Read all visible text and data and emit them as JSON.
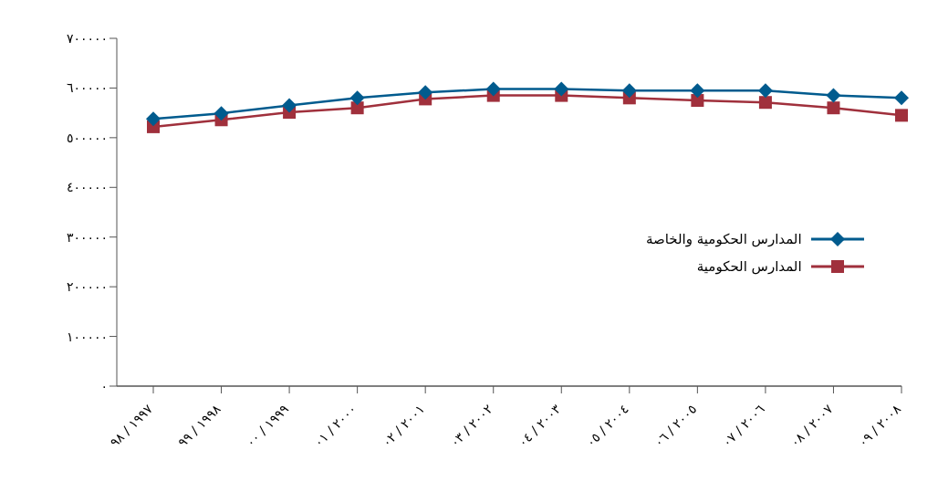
{
  "chart_data": {
    "type": "line",
    "categories": [
      "٩٨ / ١٩٩٧",
      "٩٩ / ١٩٩٨",
      "٠٠ / ١٩٩٩",
      "٠١ / ٢٠٠٠",
      "٠٢ / ٢٠٠١",
      "٠٣ / ٢٠٠٢",
      "٠٤ / ٢٠٠٣",
      "٠٥ / ٢٠٠٤",
      "٠٦ / ٢٠٠٥",
      "٠٧ / ٢٠٠٦",
      "٠٨ / ٢٠٠٧",
      "٠٩ / ٢٠٠٨"
    ],
    "series": [
      {
        "name": "المدارس الحكومية والخاصة",
        "color": "#005b8e",
        "marker": "diamond",
        "values": [
          538000,
          549000,
          565000,
          580000,
          591000,
          598000,
          598000,
          595000,
          595000,
          595000,
          585000,
          580000
        ]
      },
      {
        "name": "المدارس الحكومية",
        "color": "#a0303c",
        "marker": "square",
        "values": [
          522000,
          536000,
          551000,
          560000,
          578000,
          585000,
          585000,
          580000,
          575000,
          571000,
          560000,
          545000
        ]
      }
    ],
    "ylim": [
      0,
      700000
    ],
    "yticks": [
      {
        "value": 0,
        "label": "٠"
      },
      {
        "value": 100000,
        "label": "١٠٠٠٠٠"
      },
      {
        "value": 200000,
        "label": "٢٠٠٠٠٠"
      },
      {
        "value": 300000,
        "label": "٣٠٠٠٠٠"
      },
      {
        "value": 400000,
        "label": "٤٠٠٠٠٠"
      },
      {
        "value": 500000,
        "label": "٥٠٠٠٠٠"
      },
      {
        "value": 600000,
        "label": "٦٠٠٠٠٠"
      },
      {
        "value": 700000,
        "label": "٧٠٠٠٠٠"
      }
    ],
    "grid": false,
    "legend": "right",
    "line_style": "solid"
  }
}
